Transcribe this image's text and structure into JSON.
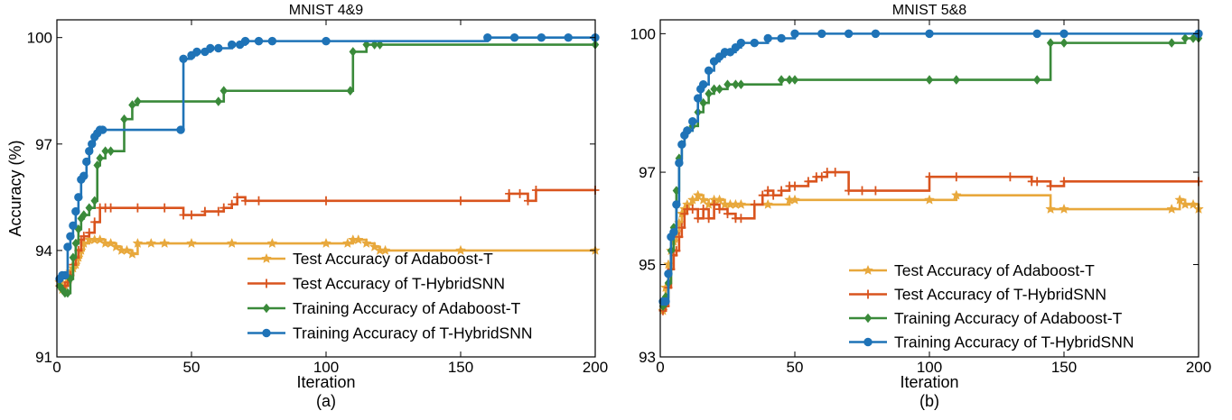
{
  "chart_data": [
    {
      "type": "line",
      "title": "MNIST 4&9",
      "xlabel": "Iteration",
      "ylabel": "Accuracy (%)",
      "caption": "(a)",
      "xlim": [
        0,
        200
      ],
      "ylim": [
        91,
        100.5
      ],
      "xticks": [
        0,
        50,
        100,
        150,
        200
      ],
      "yticks": [
        91,
        94,
        97,
        100
      ],
      "legend_position": "bottom-right",
      "series": [
        {
          "name": "Test Accuracy of Adaboost-T",
          "color": "#e8a83c",
          "marker": "star",
          "style": "step",
          "x": [
            1,
            2,
            3,
            4,
            5,
            6,
            7,
            8,
            9,
            10,
            12,
            14,
            16,
            18,
            20,
            22,
            24,
            26,
            28,
            30,
            35,
            40,
            50,
            65,
            80,
            100,
            108,
            110,
            112,
            115,
            118,
            120,
            122,
            150,
            200
          ],
          "y": [
            93.1,
            92.9,
            93.0,
            93.2,
            93.4,
            93.5,
            93.6,
            93.8,
            94.0,
            94.2,
            94.3,
            94.3,
            94.3,
            94.2,
            94.2,
            94.1,
            94.0,
            94.0,
            93.9,
            94.2,
            94.2,
            94.2,
            94.2,
            94.2,
            94.2,
            94.2,
            94.2,
            94.3,
            94.3,
            94.2,
            94.1,
            94.0,
            94.0,
            94.0,
            94.0
          ]
        },
        {
          "name": "Test Accuracy of T-HybridSNN",
          "color": "#d9541e",
          "marker": "plus",
          "style": "step",
          "x": [
            1,
            2,
            3,
            4,
            5,
            6,
            7,
            8,
            9,
            10,
            12,
            14,
            16,
            18,
            20,
            30,
            40,
            47,
            50,
            55,
            60,
            62,
            65,
            67,
            70,
            75,
            100,
            150,
            168,
            172,
            175,
            178,
            200
          ],
          "y": [
            93.0,
            92.9,
            93.0,
            93.1,
            93.3,
            93.6,
            93.8,
            94.0,
            94.3,
            94.4,
            94.5,
            94.8,
            95.2,
            95.2,
            95.2,
            95.2,
            95.2,
            95.0,
            95.0,
            95.1,
            95.1,
            95.2,
            95.3,
            95.5,
            95.4,
            95.4,
            95.4,
            95.4,
            95.6,
            95.6,
            95.4,
            95.7,
            95.7
          ]
        },
        {
          "name": "Training Accuracy of Adaboost-T",
          "color": "#3a8a3a",
          "marker": "diamond",
          "style": "step",
          "x": [
            1,
            2,
            3,
            4,
            5,
            6,
            7,
            8,
            9,
            10,
            12,
            14,
            15,
            16,
            18,
            20,
            25,
            28,
            30,
            60,
            62,
            109,
            110,
            115,
            118,
            120,
            200
          ],
          "y": [
            93.0,
            92.9,
            92.8,
            92.8,
            93.2,
            93.8,
            94.2,
            94.6,
            94.9,
            95.0,
            95.2,
            95.4,
            96.4,
            96.6,
            96.8,
            96.8,
            97.7,
            98.1,
            98.2,
            98.2,
            98.5,
            98.5,
            99.6,
            99.8,
            99.8,
            99.8,
            99.8
          ]
        },
        {
          "name": "Training Accuracy of T-HybridSNN",
          "color": "#1f73b7",
          "marker": "circle",
          "style": "step",
          "x": [
            1,
            2,
            3,
            4,
            5,
            6,
            7,
            8,
            9,
            10,
            11,
            12,
            13,
            14,
            15,
            16,
            17,
            46,
            47,
            50,
            52,
            55,
            57,
            60,
            65,
            68,
            70,
            75,
            80,
            100,
            160,
            170,
            180,
            190,
            200
          ],
          "y": [
            93.2,
            93.3,
            93.3,
            94.1,
            94.4,
            94.7,
            95.1,
            95.5,
            96.0,
            96.1,
            96.5,
            96.8,
            97.0,
            97.2,
            97.3,
            97.4,
            97.4,
            97.4,
            99.4,
            99.5,
            99.6,
            99.6,
            99.7,
            99.7,
            99.8,
            99.8,
            99.9,
            99.9,
            99.9,
            99.9,
            100.0,
            100.0,
            100.0,
            100.0,
            100.0
          ]
        }
      ]
    },
    {
      "type": "line",
      "title": "MNIST 5&8",
      "xlabel": "Iteration",
      "ylabel": "",
      "caption": "(b)",
      "xlim": [
        0,
        200
      ],
      "ylim": [
        93,
        100.3
      ],
      "xticks": [
        0,
        50,
        100,
        150,
        200
      ],
      "yticks": [
        93,
        95,
        97,
        100
      ],
      "legend_position": "bottom-right",
      "series": [
        {
          "name": "Test Accuracy of Adaboost-T",
          "color": "#e8a83c",
          "marker": "star",
          "style": "step",
          "x": [
            1,
            2,
            3,
            4,
            5,
            6,
            7,
            8,
            9,
            10,
            12,
            14,
            16,
            18,
            20,
            22,
            24,
            26,
            28,
            30,
            40,
            48,
            50,
            100,
            110,
            145,
            150,
            190,
            193,
            195,
            198,
            200
          ],
          "y": [
            94.0,
            94.5,
            95.0,
            95.3,
            95.5,
            95.7,
            95.9,
            96.1,
            96.2,
            96.3,
            96.4,
            96.5,
            96.4,
            96.3,
            96.4,
            96.4,
            96.3,
            96.3,
            96.3,
            96.3,
            96.3,
            96.4,
            96.4,
            96.4,
            96.5,
            96.2,
            96.2,
            96.2,
            96.4,
            96.3,
            96.3,
            96.2
          ]
        },
        {
          "name": "Test Accuracy of T-HybridSNN",
          "color": "#d9541e",
          "marker": "plus",
          "style": "step",
          "x": [
            1,
            2,
            3,
            4,
            5,
            6,
            7,
            8,
            9,
            10,
            12,
            14,
            16,
            18,
            20,
            22,
            25,
            28,
            30,
            35,
            38,
            40,
            42,
            45,
            48,
            50,
            55,
            58,
            60,
            62,
            65,
            70,
            75,
            80,
            100,
            110,
            130,
            138,
            140,
            145,
            150,
            200
          ],
          "y": [
            94.0,
            94.1,
            94.5,
            94.9,
            95.2,
            95.3,
            95.6,
            95.8,
            96.1,
            96.2,
            96.2,
            96.0,
            96.2,
            96.0,
            96.3,
            96.2,
            96.1,
            96.0,
            96.0,
            96.3,
            96.5,
            96.6,
            96.5,
            96.6,
            96.7,
            96.7,
            96.8,
            96.9,
            96.9,
            97.0,
            97.0,
            96.6,
            96.6,
            96.6,
            96.9,
            96.9,
            96.9,
            96.8,
            96.8,
            96.7,
            96.8,
            96.8
          ]
        },
        {
          "name": "Training Accuracy of Adaboost-T",
          "color": "#3a8a3a",
          "marker": "diamond",
          "style": "step",
          "x": [
            1,
            2,
            3,
            4,
            5,
            6,
            7,
            8,
            9,
            10,
            12,
            14,
            16,
            18,
            20,
            22,
            25,
            28,
            30,
            45,
            48,
            50,
            100,
            110,
            140,
            145,
            150,
            190,
            195,
            198,
            200
          ],
          "y": [
            94.1,
            94.3,
            94.6,
            95.3,
            95.8,
            96.6,
            97.3,
            97.6,
            97.8,
            97.9,
            98.0,
            98.3,
            98.5,
            98.7,
            98.8,
            98.8,
            98.9,
            98.9,
            98.9,
            99.0,
            99.0,
            99.0,
            99.0,
            99.0,
            99.0,
            99.8,
            99.8,
            99.8,
            99.9,
            99.9,
            99.9
          ]
        },
        {
          "name": "Training Accuracy of T-HybridSNN",
          "color": "#1f73b7",
          "marker": "circle",
          "style": "step",
          "x": [
            1,
            2,
            3,
            4,
            5,
            6,
            7,
            8,
            9,
            10,
            12,
            14,
            15,
            16,
            18,
            20,
            22,
            24,
            26,
            28,
            30,
            35,
            40,
            45,
            50,
            60,
            70,
            80,
            100,
            140,
            150,
            200
          ],
          "y": [
            94.2,
            94.2,
            94.8,
            95.6,
            95.7,
            96.3,
            97.2,
            97.6,
            97.8,
            97.9,
            98.1,
            98.6,
            98.8,
            98.9,
            99.2,
            99.4,
            99.5,
            99.6,
            99.6,
            99.7,
            99.8,
            99.8,
            99.9,
            99.9,
            100.0,
            100.0,
            100.0,
            100.0,
            100.0,
            100.0,
            100.0,
            100.0
          ]
        }
      ]
    }
  ]
}
